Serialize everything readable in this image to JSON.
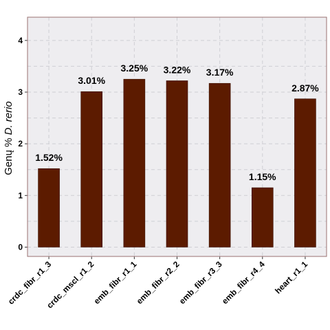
{
  "chart_data": {
    "type": "bar",
    "ylabel_prefix": "Genų % ",
    "ylabel_italic": "D. rerio",
    "xlabel": "",
    "ylim": [
      -0.18,
      4.45
    ],
    "yticks": [
      0,
      1,
      2,
      3,
      4
    ],
    "categories": [
      "crdc_fibr_r1_3",
      "crdc_mscl_r1_2",
      "emb_fibr_r1_1",
      "emb_fibr_r2_2",
      "emb_fibr_r3_3",
      "emb_fibr_r4_4",
      "heart_r1_1"
    ],
    "values": [
      1.52,
      3.01,
      3.25,
      3.22,
      3.17,
      1.15,
      2.87
    ],
    "data_labels": [
      "1.52%",
      "3.01%",
      "3.25%",
      "3.22%",
      "3.17%",
      "1.15%",
      "2.87%"
    ],
    "bar_color": "#5c1b00",
    "panel_background": "#eeedf0",
    "panel_border": "#9a7070",
    "grid": true
  }
}
